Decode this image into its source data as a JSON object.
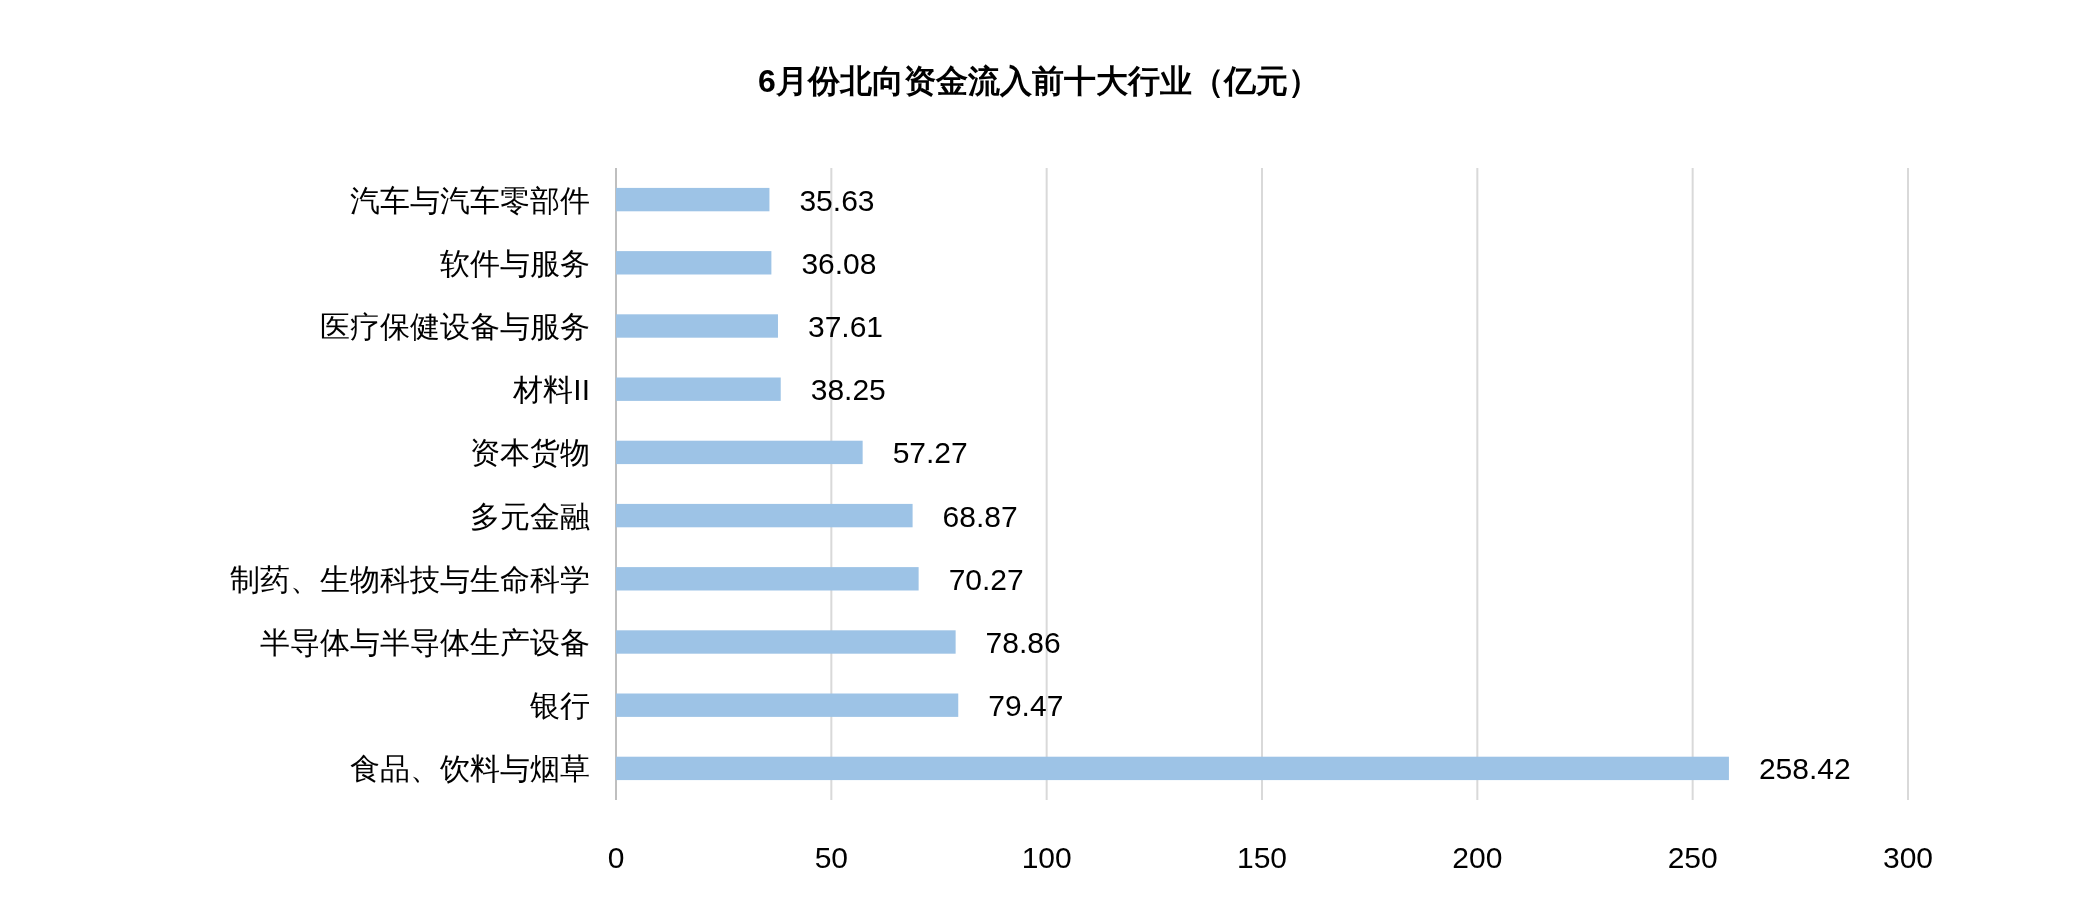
{
  "chart_data": {
    "type": "bar",
    "orientation": "horizontal",
    "title": "6月份北向资金流入前十大行业（亿元）",
    "categories": [
      "汽车与汽车零部件",
      "软件与服务",
      "医疗保健设备与服务",
      "材料II",
      "资本货物",
      "多元金融",
      "制药、生物科技与生命科学",
      "半导体与半导体生产设备",
      "银行",
      "食品、饮料与烟草"
    ],
    "values": [
      35.63,
      36.08,
      37.61,
      38.25,
      57.27,
      68.87,
      70.27,
      78.86,
      79.47,
      258.42
    ],
    "color": "#9dc3e6",
    "xlim": [
      0,
      300
    ],
    "xticks": [
      0,
      50,
      100,
      150,
      200,
      250,
      300
    ],
    "grid": "x",
    "data_labels": true
  }
}
